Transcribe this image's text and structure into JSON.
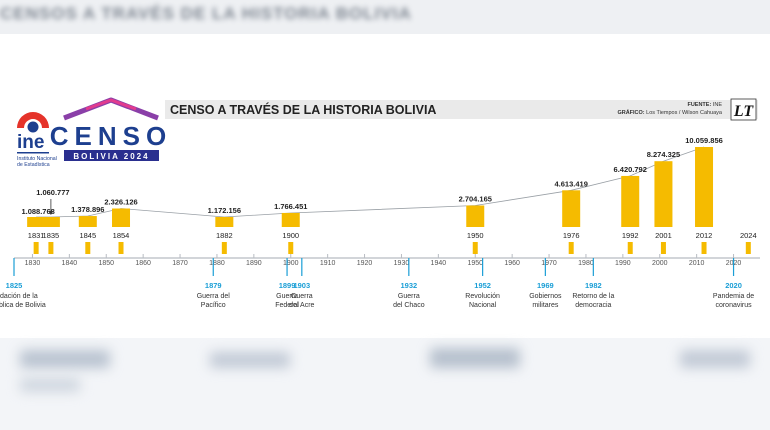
{
  "header": {
    "blurred_headline": "CENSOS A TRAVÉS DE LA HISTORIA BOLIVIA",
    "title": "CENSO A TRAVÉS DE LA HISTORIA BOLIVIA",
    "fuente_label": "FUENTE:",
    "fuente_value": "INE",
    "grafico_label": "GRÁFICO:",
    "grafico_value": "Los Tiempos / Wilson Cahuaya",
    "paper_logo": "LT"
  },
  "logos": {
    "ine_name": "ine",
    "ine_subtitle_1": "Instituto Nacional",
    "ine_subtitle_2": "de Estadística",
    "censo_word": "CENSO",
    "censo_band": "BOLIVIA 2024"
  },
  "colors": {
    "bar": "#f5bb00",
    "event": "#1a9ed6",
    "axis": "#b8bcc2",
    "text": "#222222",
    "connector": "#9aa0a6",
    "ine_red": "#e5332a",
    "ine_blue": "#1d3f8f"
  },
  "chart_data": {
    "type": "bar",
    "title": "CENSO A TRAVÉS DE LA HISTORIA BOLIVIA",
    "categories": [
      "1831",
      "1835",
      "1845",
      "1854",
      "1882",
      "1900",
      "1950",
      "1976",
      "1992",
      "2001",
      "2012",
      "2024"
    ],
    "values": [
      1088768,
      1060777,
      1378896,
      2326126,
      1172156,
      1766451,
      2704165,
      4613419,
      6420792,
      8274325,
      10059856,
      null
    ],
    "value_labels": [
      "1.088.768",
      "1.060.777",
      "1.378.896",
      "2.326.126",
      "1.172.156",
      "1.766.451",
      "2.704.165",
      "4.613.419",
      "6.420.792",
      "8.274.325",
      "10.059.856",
      ""
    ],
    "x_ticks": [
      "1830",
      "1840",
      "1850",
      "1860",
      "1870",
      "1880",
      "1890",
      "1900",
      "1910",
      "1920",
      "1930",
      "1940",
      "1950",
      "1960",
      "1970",
      "1980",
      "1990",
      "2000",
      "2010",
      "2020"
    ],
    "xlim": [
      1825,
      2025
    ],
    "ylim": [
      0,
      10059856
    ],
    "events": [
      {
        "year": "1825",
        "text": [
          "fundación de la",
          "República de Bolivia"
        ]
      },
      {
        "year": "1879",
        "text": [
          "Guerra del",
          "Pacífico"
        ]
      },
      {
        "year": "1899",
        "text": [
          "Guerra",
          "Federal"
        ]
      },
      {
        "year": "1903",
        "text": [
          "Guerra",
          "del Acre"
        ]
      },
      {
        "year": "1932",
        "text": [
          "Guerra",
          "del Chaco"
        ]
      },
      {
        "year": "1952",
        "text": [
          "Revolución",
          "Nacional"
        ]
      },
      {
        "year": "1969",
        "text": [
          "Gobiernos",
          "militares"
        ]
      },
      {
        "year": "1982",
        "text": [
          "Retorno de la",
          "democracia"
        ]
      },
      {
        "year": "2020",
        "text": [
          "Pandemia de",
          "coronavirus"
        ]
      }
    ]
  }
}
